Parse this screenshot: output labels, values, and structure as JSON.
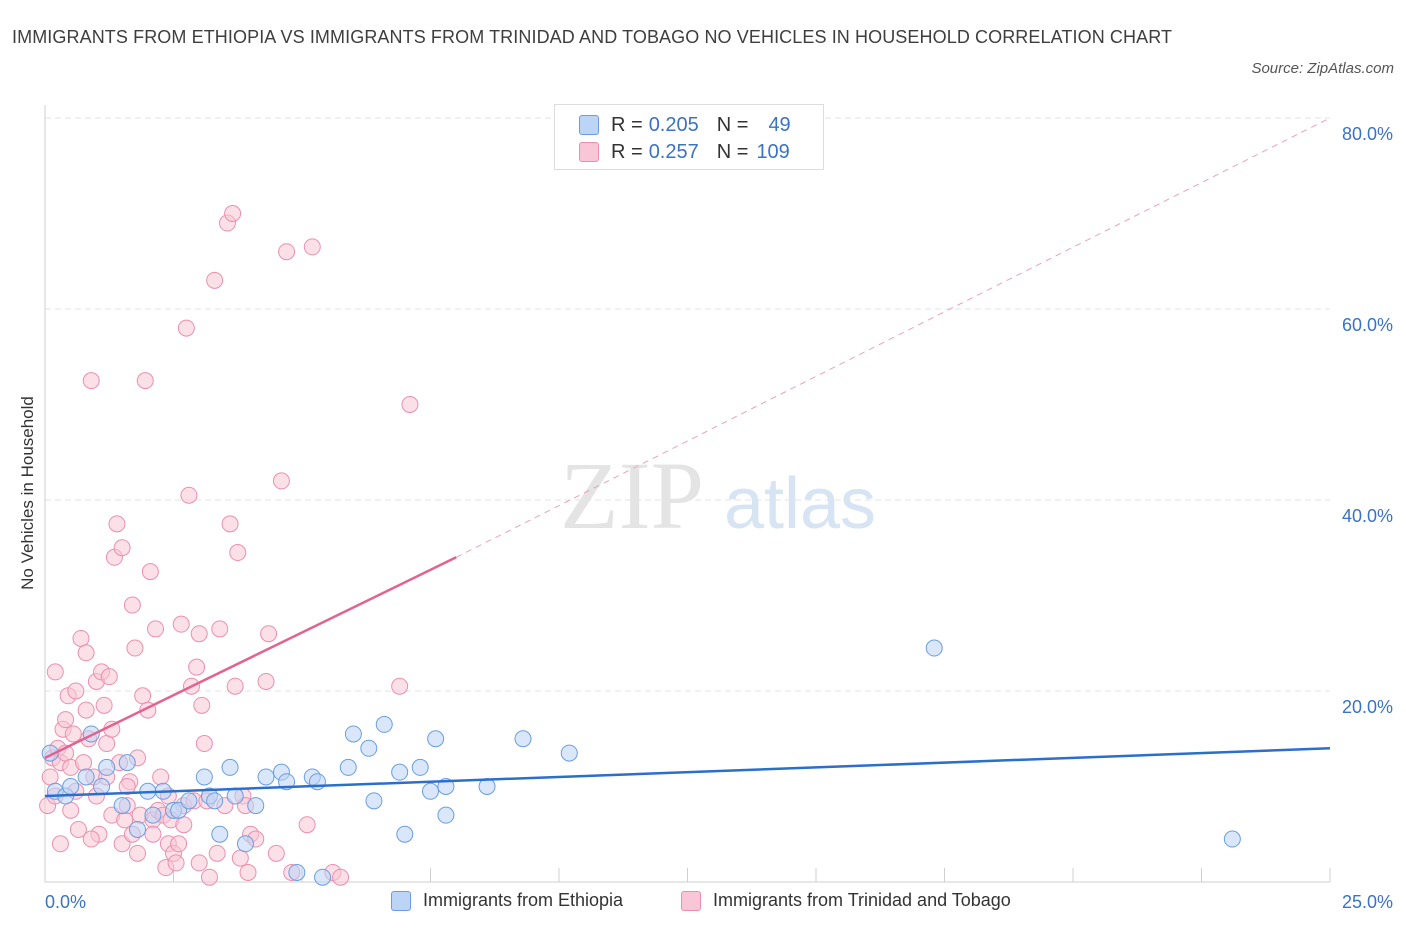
{
  "title": "IMMIGRANTS FROM ETHIOPIA VS IMMIGRANTS FROM TRINIDAD AND TOBAGO NO VEHICLES IN HOUSEHOLD CORRELATION CHART",
  "source": "Source: ZipAtlas.com",
  "watermark": {
    "zip": "ZIP",
    "atlas": "atlas"
  },
  "colors": {
    "ethiopia_fill": "#bcd4f6",
    "ethiopia_stroke": "#6a9ee0",
    "ethiopia_line": "#2a6fc9",
    "trinidad_fill": "#f8c6d6",
    "trinidad_stroke": "#ec8fae",
    "trinidad_line": "#e3628f",
    "axis_label": "#3a73c4",
    "grid": "#e3e3e3"
  },
  "legend": {
    "r_label": "R =",
    "n_label": "N =",
    "rows": [
      {
        "r": "0.205",
        "n": "49"
      },
      {
        "r": "0.257",
        "n": "109"
      }
    ]
  },
  "chart_data": {
    "type": "scatter",
    "title": "IMMIGRANTS FROM ETHIOPIA VS IMMIGRANTS FROM TRINIDAD AND TOBAGO NO VEHICLES IN HOUSEHOLD CORRELATION CHART",
    "xlabel": "",
    "ylabel": "No Vehicles in Household",
    "xlim": [
      0,
      25
    ],
    "ylim": [
      0,
      80
    ],
    "x_tick_labels": [
      "0.0%",
      "25.0%"
    ],
    "y_ticks": [
      20,
      40,
      60,
      80
    ],
    "y_tick_labels": [
      "20.0%",
      "40.0%",
      "60.0%",
      "80.0%"
    ],
    "grid": true,
    "legend_position": "top-center",
    "series": [
      {
        "name": "Immigrants from Ethiopia",
        "r": 0.205,
        "n": 49,
        "trend": {
          "x": [
            0,
            25
          ],
          "y": [
            9.0,
            14.0
          ]
        },
        "points": [
          [
            0.1,
            13.5
          ],
          [
            0.2,
            9.5
          ],
          [
            0.4,
            9.0
          ],
          [
            0.5,
            10.0
          ],
          [
            0.8,
            11.0
          ],
          [
            0.9,
            15.5
          ],
          [
            1.1,
            10.0
          ],
          [
            1.2,
            12.0
          ],
          [
            1.5,
            8.0
          ],
          [
            1.6,
            12.5
          ],
          [
            1.8,
            5.5
          ],
          [
            2.0,
            9.5
          ],
          [
            2.1,
            7.0
          ],
          [
            2.3,
            9.5
          ],
          [
            2.5,
            7.5
          ],
          [
            2.6,
            7.5
          ],
          [
            2.8,
            8.5
          ],
          [
            3.1,
            11.0
          ],
          [
            3.2,
            9.0
          ],
          [
            3.3,
            8.5
          ],
          [
            3.4,
            5.0
          ],
          [
            3.6,
            12.0
          ],
          [
            3.7,
            9.0
          ],
          [
            3.9,
            4.0
          ],
          [
            4.1,
            8.0
          ],
          [
            4.3,
            11.0
          ],
          [
            4.6,
            11.5
          ],
          [
            4.7,
            10.5
          ],
          [
            4.9,
            1.0
          ],
          [
            5.2,
            11.0
          ],
          [
            5.3,
            10.5
          ],
          [
            5.4,
            0.5
          ],
          [
            5.9,
            12.0
          ],
          [
            6.0,
            15.5
          ],
          [
            6.3,
            14.0
          ],
          [
            6.4,
            8.5
          ],
          [
            6.6,
            16.5
          ],
          [
            6.9,
            11.5
          ],
          [
            7.0,
            5.0
          ],
          [
            7.3,
            12.0
          ],
          [
            7.5,
            9.5
          ],
          [
            7.6,
            15.0
          ],
          [
            7.8,
            10.0
          ],
          [
            7.8,
            7.0
          ],
          [
            8.6,
            10.0
          ],
          [
            9.3,
            15.0
          ],
          [
            10.2,
            13.5
          ],
          [
            17.3,
            24.5
          ],
          [
            23.1,
            4.5
          ]
        ]
      },
      {
        "name": "Immigrants from Trinidad and Tobago",
        "r": 0.257,
        "n": 109,
        "trend": {
          "x": [
            0,
            8.0
          ],
          "y": [
            13.0,
            34.0
          ]
        },
        "trend_dashed": {
          "x": [
            8.0,
            25
          ],
          "y": [
            34.0,
            80.0
          ]
        },
        "points": [
          [
            0.05,
            8.0
          ],
          [
            0.1,
            11.0
          ],
          [
            0.15,
            13.0
          ],
          [
            0.2,
            9.0
          ],
          [
            0.25,
            14.0
          ],
          [
            0.3,
            12.5
          ],
          [
            0.35,
            16.0
          ],
          [
            0.4,
            13.5
          ],
          [
            0.45,
            19.5
          ],
          [
            0.5,
            12.0
          ],
          [
            0.55,
            15.5
          ],
          [
            0.6,
            20.0
          ],
          [
            0.65,
            5.5
          ],
          [
            0.7,
            25.5
          ],
          [
            0.75,
            12.5
          ],
          [
            0.8,
            24.0
          ],
          [
            0.85,
            15.0
          ],
          [
            0.9,
            52.5
          ],
          [
            0.95,
            11.0
          ],
          [
            1.0,
            21.0
          ],
          [
            1.05,
            5.0
          ],
          [
            1.1,
            22.0
          ],
          [
            1.15,
            18.5
          ],
          [
            1.2,
            14.5
          ],
          [
            1.25,
            21.5
          ],
          [
            1.3,
            7.0
          ],
          [
            1.35,
            34.0
          ],
          [
            1.4,
            37.5
          ],
          [
            1.45,
            12.5
          ],
          [
            1.5,
            35.0
          ],
          [
            1.55,
            6.5
          ],
          [
            1.6,
            8.0
          ],
          [
            1.65,
            10.5
          ],
          [
            1.7,
            29.0
          ],
          [
            1.75,
            24.5
          ],
          [
            1.8,
            13.0
          ],
          [
            1.85,
            7.0
          ],
          [
            1.9,
            19.5
          ],
          [
            1.95,
            52.5
          ],
          [
            2.0,
            18.0
          ],
          [
            2.05,
            32.5
          ],
          [
            2.1,
            6.5
          ],
          [
            2.15,
            26.5
          ],
          [
            2.2,
            7.5
          ],
          [
            2.25,
            11.0
          ],
          [
            2.3,
            7.0
          ],
          [
            2.35,
            1.5
          ],
          [
            2.4,
            4.0
          ],
          [
            2.45,
            6.5
          ],
          [
            2.5,
            3.0
          ],
          [
            2.55,
            2.0
          ],
          [
            2.6,
            4.0
          ],
          [
            2.65,
            27.0
          ],
          [
            2.7,
            8.0
          ],
          [
            2.75,
            58.0
          ],
          [
            2.8,
            40.5
          ],
          [
            2.85,
            20.5
          ],
          [
            2.9,
            8.5
          ],
          [
            2.95,
            22.5
          ],
          [
            3.0,
            26.0
          ],
          [
            3.05,
            18.5
          ],
          [
            3.1,
            14.5
          ],
          [
            3.15,
            8.5
          ],
          [
            3.2,
            0.5
          ],
          [
            3.3,
            63.0
          ],
          [
            3.35,
            3.0
          ],
          [
            3.4,
            26.5
          ],
          [
            3.5,
            8.0
          ],
          [
            3.55,
            69.0
          ],
          [
            3.6,
            37.5
          ],
          [
            3.65,
            70.0
          ],
          [
            3.7,
            20.5
          ],
          [
            3.75,
            34.5
          ],
          [
            3.8,
            2.5
          ],
          [
            3.85,
            9.0
          ],
          [
            3.9,
            8.0
          ],
          [
            3.95,
            1.0
          ],
          [
            4.0,
            5.0
          ],
          [
            4.1,
            4.5
          ],
          [
            4.3,
            21.0
          ],
          [
            4.35,
            26.0
          ],
          [
            4.5,
            3.0
          ],
          [
            4.6,
            42.0
          ],
          [
            4.7,
            66.0
          ],
          [
            4.8,
            1.0
          ],
          [
            5.1,
            6.0
          ],
          [
            5.2,
            66.5
          ],
          [
            5.6,
            1.0
          ],
          [
            5.75,
            0.5
          ],
          [
            6.9,
            20.5
          ],
          [
            7.1,
            50.0
          ],
          [
            0.2,
            22.0
          ],
          [
            0.3,
            4.0
          ],
          [
            0.6,
            9.5
          ],
          [
            0.9,
            4.5
          ],
          [
            1.2,
            11.0
          ],
          [
            1.5,
            4.0
          ],
          [
            1.8,
            3.0
          ],
          [
            2.1,
            5.0
          ],
          [
            2.4,
            9.0
          ],
          [
            2.7,
            6.0
          ],
          [
            3.0,
            2.0
          ],
          [
            0.4,
            17.0
          ],
          [
            0.5,
            7.5
          ],
          [
            0.8,
            18.0
          ],
          [
            1.0,
            9.0
          ],
          [
            1.3,
            16.0
          ],
          [
            1.6,
            10.0
          ],
          [
            1.7,
            5.0
          ]
        ]
      }
    ]
  },
  "axes": {
    "x_min_label": "0.0%",
    "x_max_label": "25.0%"
  }
}
